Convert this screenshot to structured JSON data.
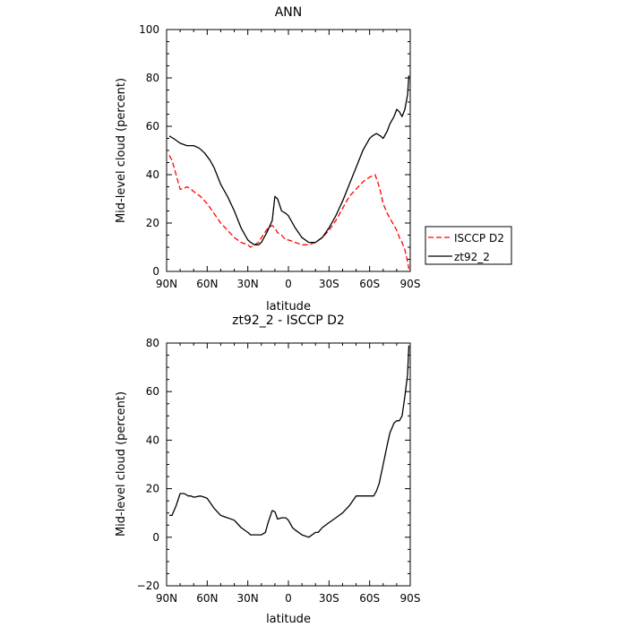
{
  "chart_data": [
    {
      "type": "line",
      "title": "ANN",
      "xlabel": "latitude",
      "ylabel": "Mid-level cloud (percent)",
      "xlim": [
        90,
        -90
      ],
      "ylim": [
        0,
        100
      ],
      "x_ticks": [
        90,
        60,
        30,
        0,
        -30,
        -60,
        -90
      ],
      "x_tick_labels": [
        "90N",
        "60N",
        "30N",
        "0",
        "30S",
        "60S",
        "90S"
      ],
      "y_ticks": [
        0,
        20,
        40,
        60,
        80,
        100
      ],
      "y_tick_labels": [
        "0",
        "20",
        "40",
        "60",
        "80",
        "100"
      ],
      "legend_position": "right",
      "series": [
        {
          "name": "ISCCP D2",
          "color": "#ff0000",
          "style": "dashed",
          "x": [
            88,
            86,
            83,
            80,
            78,
            75,
            72,
            70,
            65,
            60,
            55,
            50,
            45,
            40,
            35,
            30,
            28,
            25,
            22,
            20,
            15,
            12,
            10,
            8,
            5,
            2,
            0,
            -5,
            -10,
            -15,
            -20,
            -25,
            -30,
            -35,
            -40,
            -45,
            -50,
            -55,
            -60,
            -64,
            -66,
            -68,
            -70,
            -73,
            -75,
            -78,
            -80,
            -82,
            -84,
            -86,
            -88,
            -89
          ],
          "y": [
            48,
            46,
            40,
            34,
            34,
            35,
            34,
            33,
            31,
            28,
            24,
            20,
            17,
            14,
            12,
            11,
            10,
            11,
            12,
            14,
            18,
            19,
            18,
            16,
            15,
            13,
            13,
            12,
            11,
            11,
            12,
            14,
            17,
            21,
            26,
            31,
            34,
            37,
            39,
            40,
            37,
            33,
            28,
            24,
            22,
            19,
            17,
            14,
            12,
            9,
            4,
            1
          ]
        },
        {
          "name": "zt92_2",
          "color": "#000000",
          "style": "solid",
          "x": [
            88,
            85,
            80,
            75,
            72,
            70,
            66,
            62,
            58,
            55,
            50,
            45,
            40,
            35,
            30,
            28,
            25,
            22,
            20,
            16,
            12,
            10,
            8,
            5,
            2,
            0,
            -5,
            -10,
            -15,
            -20,
            -25,
            -30,
            -35,
            -40,
            -45,
            -50,
            -55,
            -58,
            -60,
            -62,
            -65,
            -68,
            -70,
            -73,
            -75,
            -78,
            -80,
            -82,
            -84,
            -86,
            -88,
            -89
          ],
          "y": [
            56,
            55,
            53,
            52,
            52,
            52,
            51,
            49,
            46,
            43,
            36,
            31,
            25,
            18,
            13,
            12,
            11,
            11,
            12,
            16,
            21,
            31,
            30,
            25,
            24,
            23,
            18,
            14,
            12,
            12,
            14,
            18,
            23,
            29,
            36,
            43,
            50,
            53,
            55,
            56,
            57,
            56,
            55,
            58,
            61,
            64,
            67,
            66,
            64,
            67,
            73,
            81
          ]
        }
      ]
    },
    {
      "type": "line",
      "title": "zt92_2 - ISCCP D2",
      "xlabel": "latitude",
      "ylabel": "Mid-level cloud (percent)",
      "xlim": [
        90,
        -90
      ],
      "ylim": [
        -20,
        80
      ],
      "x_ticks": [
        90,
        60,
        30,
        0,
        -30,
        -60,
        -90
      ],
      "x_tick_labels": [
        "90N",
        "60N",
        "30N",
        "0",
        "30S",
        "60S",
        "90S"
      ],
      "y_ticks": [
        -20,
        0,
        20,
        40,
        60,
        80
      ],
      "y_tick_labels": [
        "−20",
        "0",
        "20",
        "40",
        "60",
        "80"
      ],
      "series": [
        {
          "color": "#000000",
          "style": "solid",
          "x": [
            88,
            86,
            83,
            80,
            77,
            74,
            72,
            70,
            65,
            62,
            60,
            55,
            50,
            45,
            40,
            35,
            30,
            28,
            25,
            22,
            20,
            17,
            15,
            12,
            10,
            8,
            5,
            2,
            0,
            -3,
            -5,
            -10,
            -15,
            -20,
            -22,
            -25,
            -30,
            -35,
            -40,
            -45,
            -50,
            -55,
            -60,
            -63,
            -65,
            -67,
            -70,
            -73,
            -75,
            -78,
            -80,
            -82,
            -84,
            -86,
            -88,
            -89
          ],
          "y": [
            9,
            9,
            13,
            18,
            18,
            17,
            17,
            16.5,
            17,
            16.5,
            16,
            12,
            9,
            8,
            7,
            4,
            2,
            1,
            1,
            1,
            1,
            2,
            6,
            11,
            10.5,
            7.5,
            8,
            8,
            7,
            4,
            3,
            1,
            0,
            2,
            2,
            4,
            6,
            8,
            10,
            13,
            17,
            17,
            17,
            17,
            19,
            22,
            30,
            38,
            43,
            47,
            48,
            48,
            50,
            58,
            67,
            79
          ]
        }
      ]
    }
  ],
  "legend": {
    "items": [
      {
        "label": "ISCCP D2",
        "color": "#ff0000",
        "style": "dashed"
      },
      {
        "label": "zt92_2",
        "color": "#000000",
        "style": "solid"
      }
    ]
  }
}
